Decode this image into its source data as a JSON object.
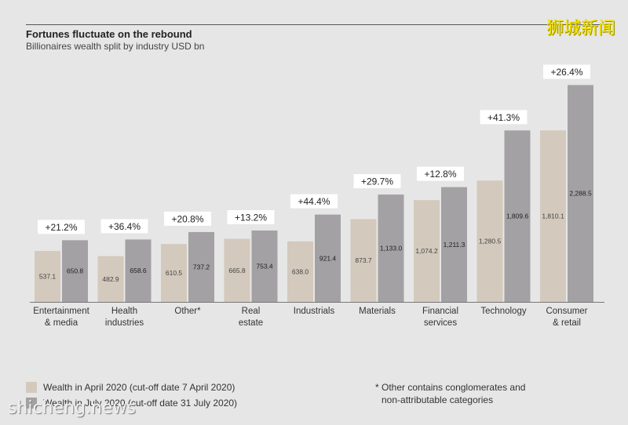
{
  "watermark_top": "狮城新闻",
  "watermark_bottom": "shicheng.news",
  "colors": {
    "april": "#d3c9bc",
    "july": "#a3a1a3",
    "background": "#e6e6e6",
    "badge_bg": "#ffffff"
  },
  "legend": {
    "april": "Wealth in April 2020 (cut-off date 7 April 2020)",
    "july": "Wealth in July 2020 (cut-off date 31 July 2020)"
  },
  "footnote": {
    "marker": "*",
    "line1": "Other contains conglomerates and",
    "line2": "non-attributable categories"
  },
  "chart_data": {
    "type": "bar",
    "title": "Fortunes fluctuate on the rebound",
    "subtitle": "Billionaires wealth split by industry USD bn",
    "categories": [
      [
        "Entertainment",
        "& media"
      ],
      [
        "Health",
        "industries"
      ],
      [
        "Other*"
      ],
      [
        "Real",
        "estate"
      ],
      [
        "Industrials"
      ],
      [
        "Materials"
      ],
      [
        "Financial",
        "services"
      ],
      [
        "Technology"
      ],
      [
        "Consumer",
        "& retail"
      ]
    ],
    "series": [
      {
        "name": "Wealth in April 2020 (cut-off date 7 April 2020)",
        "values": [
          537.1,
          482.9,
          610.5,
          665.8,
          638.0,
          873.7,
          1074.2,
          1280.5,
          1810.1
        ],
        "labels": [
          "537.1",
          "482.9",
          "610.5",
          "665.8",
          "638.0",
          "873.7",
          "1,074.2",
          "1,280.5",
          "1,810.1"
        ]
      },
      {
        "name": "Wealth in July 2020 (cut-off date 31 July 2020)",
        "values": [
          650.8,
          658.6,
          737.2,
          753.4,
          921.4,
          1133.0,
          1211.3,
          1809.6,
          2288.5
        ],
        "labels": [
          "650.8",
          "658.6",
          "737.2",
          "753.4",
          "921.4",
          "1,133.0",
          "1,211.3",
          "1,809.6",
          "2,288.5"
        ]
      }
    ],
    "changes": [
      "+21.2%",
      "+36.4%",
      "+20.8%",
      "+13.2%",
      "+44.4%",
      "+29.7%",
      "+12.8%",
      "+41.3%",
      "+26.4%"
    ],
    "ylim": [
      0,
      2400
    ],
    "grid": false,
    "legend_position": "bottom-left"
  }
}
